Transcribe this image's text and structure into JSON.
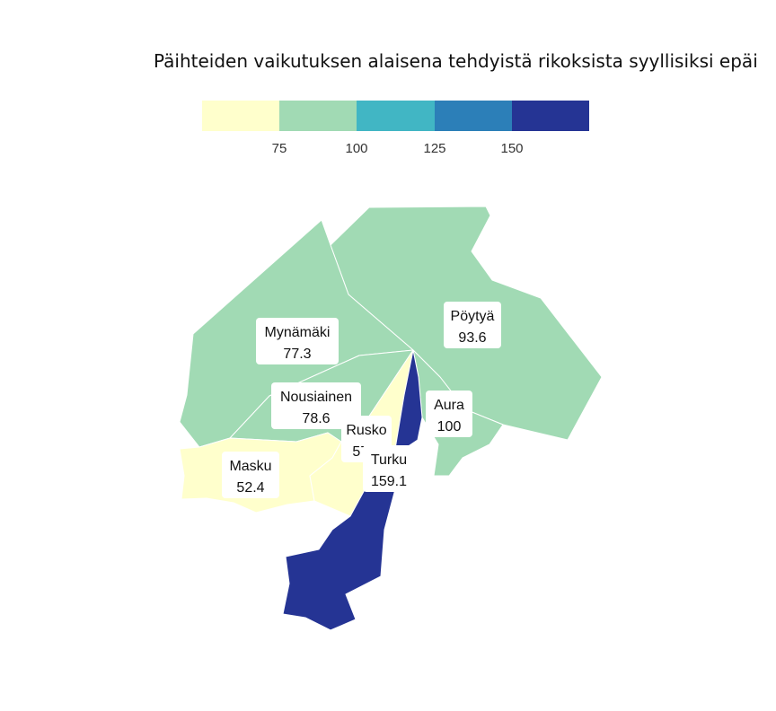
{
  "title": "Päihteiden vaikutuksen alaisena tehdyistä rikoksista syyllisiksi epäi",
  "legend": {
    "bins": [
      {
        "color": "#ffffcc"
      },
      {
        "color": "#a1dab4"
      },
      {
        "color": "#41b6c4"
      },
      {
        "color": "#2c7fb8"
      },
      {
        "color": "#253494"
      }
    ],
    "ticks": [
      "75",
      "100",
      "125",
      "150"
    ]
  },
  "regions": [
    {
      "name": "Mynämäki",
      "value": "77.3",
      "color": "#a1dab4"
    },
    {
      "name": "Pöytyä",
      "value": "93.6",
      "color": "#a1dab4"
    },
    {
      "name": "Nousiainen",
      "value": "78.6",
      "color": "#a1dab4"
    },
    {
      "name": "Aura",
      "value": "100",
      "color": "#a1dab4"
    },
    {
      "name": "Rusko",
      "value": "57.2",
      "color": "#ffffcc"
    },
    {
      "name": "Masku",
      "value": "52.4",
      "color": "#ffffcc"
    },
    {
      "name": "Turku",
      "value": "159.1",
      "color": "#253494"
    }
  ]
}
